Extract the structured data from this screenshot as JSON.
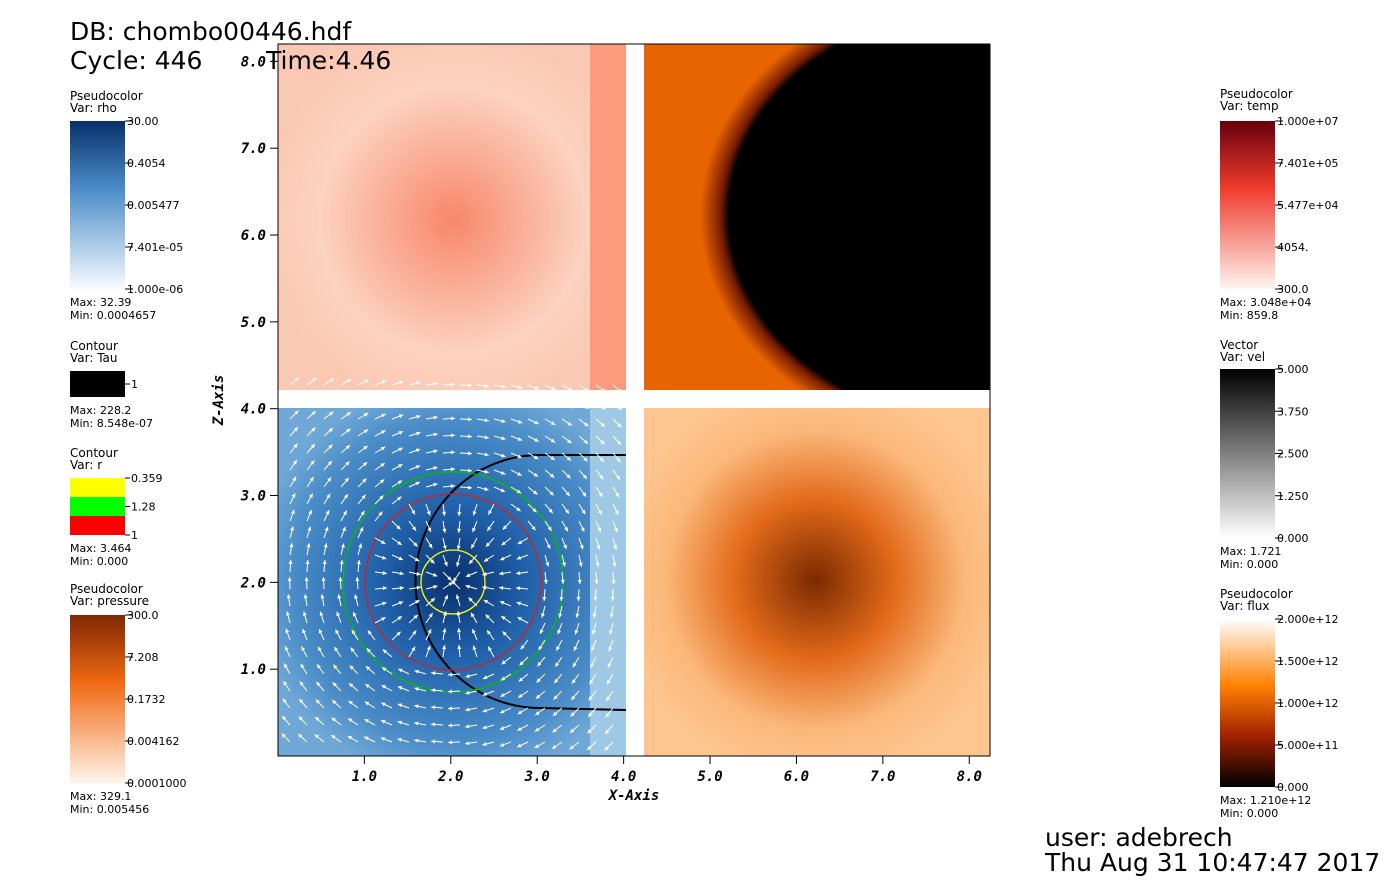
{
  "header": {
    "db": "DB: chombo00446.hdf",
    "cycle": "Cycle: 446",
    "time": "Time:4.46"
  },
  "footer": {
    "user": "user: adebrech",
    "date": "Thu Aug 31 10:47:47 2017"
  },
  "plot": {
    "xlabel": "X-Axis",
    "ylabel": "Z-Axis",
    "xlim": [
      0,
      8.24
    ],
    "ylim": [
      0,
      8.2
    ],
    "xticks": [
      {
        "value": 1,
        "label": "1.0"
      },
      {
        "value": 2,
        "label": "2.0"
      },
      {
        "value": 3,
        "label": "3.0"
      },
      {
        "value": 4,
        "label": "4.0"
      },
      {
        "value": 5,
        "label": "5.0"
      },
      {
        "value": 6,
        "label": "6.0"
      },
      {
        "value": 7,
        "label": "7.0"
      },
      {
        "value": 8,
        "label": "8.0"
      }
    ],
    "yticks": [
      {
        "value": 1,
        "label": "1.0"
      },
      {
        "value": 2,
        "label": "2.0"
      },
      {
        "value": 3,
        "label": "3.0"
      },
      {
        "value": 4,
        "label": "4.0"
      },
      {
        "value": 5,
        "label": "5.0"
      },
      {
        "value": 6,
        "label": "6.0"
      },
      {
        "value": 7,
        "label": "7.0"
      },
      {
        "value": 8,
        "label": "8.0"
      }
    ]
  },
  "legends": [
    {
      "kind": "Pseudocolor",
      "var": "Var: rho",
      "labels": [
        "30.00",
        "0.4054",
        "0.005477",
        "7.401e-05",
        "1.000e-06"
      ],
      "max": "Max:  32.39",
      "min": "Min:  0.0004657"
    },
    {
      "kind": "Contour",
      "var": "Var: Tau",
      "labels": [
        "1"
      ],
      "colors": [
        "#000000"
      ],
      "max": "Max:  228.2",
      "min": "Min:  8.548e-07"
    },
    {
      "kind": "Contour",
      "var": "Var: r",
      "labels": [
        "0.359",
        "1.28",
        "1"
      ],
      "colors": [
        "#ffff00",
        "#00ff00",
        "#ff0000"
      ],
      "max": "Max:  3.464",
      "min": "Min:  0.000"
    },
    {
      "kind": "Pseudocolor",
      "var": "Var: pressure",
      "labels": [
        "300.0",
        "7.208",
        "0.1732",
        "0.004162",
        "0.0001000"
      ],
      "max": "Max:  329.1",
      "min": "Min:  0.005456"
    },
    {
      "kind": "Pseudocolor",
      "var": "Var: temp",
      "labels": [
        "1.000e+07",
        "7.401e+05",
        "5.477e+04",
        "4054.",
        "300.0"
      ],
      "max": "Max:  3.048e+04",
      "min": "Min:  859.8"
    },
    {
      "kind": "Vector",
      "var": "Var: vel",
      "labels": [
        "5.000",
        "3.750",
        "2.500",
        "1.250",
        "0.000"
      ],
      "max": "Max:  1.721",
      "min": "Min:  0.000"
    },
    {
      "kind": "Pseudocolor",
      "var": "Var: flux",
      "labels": [
        "2.000e+12",
        "1.500e+12",
        "1.000e+12",
        "5.000e+11",
        "0.000"
      ],
      "max": "Max:  1.210e+12",
      "min": "Min:  0.000"
    }
  ]
}
